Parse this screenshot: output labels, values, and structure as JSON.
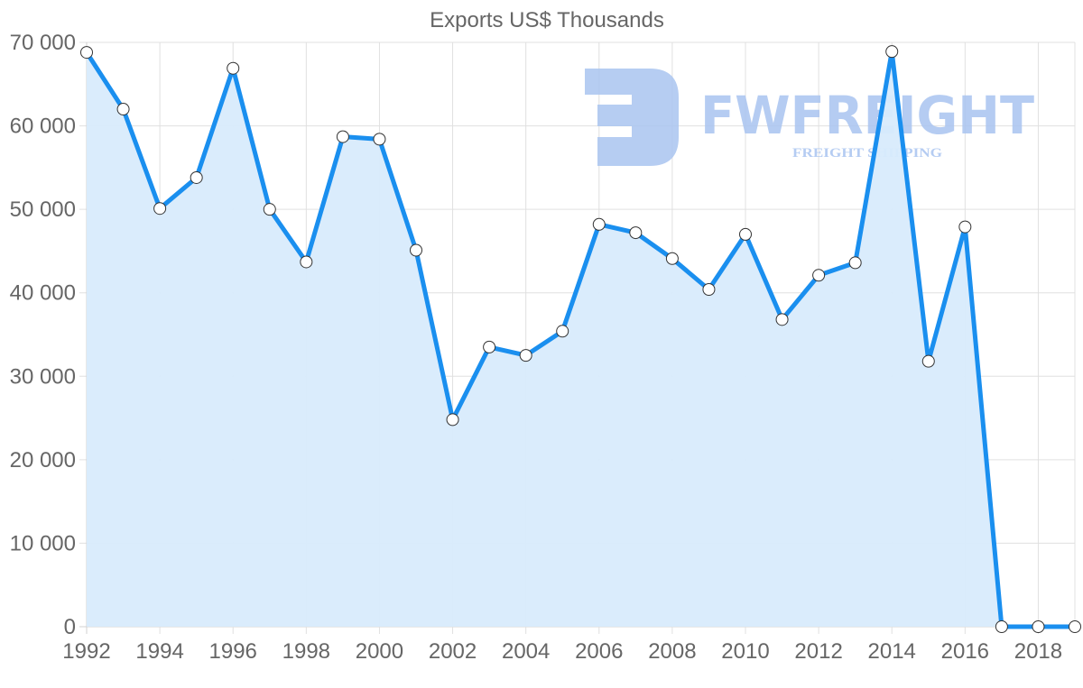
{
  "chart_data": {
    "type": "area",
    "title": "Exports US$ Thousands",
    "xlabel": "",
    "ylabel": "",
    "x": [
      1992,
      1993,
      1994,
      1995,
      1996,
      1997,
      1998,
      1999,
      2000,
      2001,
      2002,
      2003,
      2004,
      2005,
      2006,
      2007,
      2008,
      2009,
      2010,
      2011,
      2012,
      2013,
      2014,
      2015,
      2016,
      2017,
      2018,
      2019
    ],
    "series": [
      {
        "name": "Exports US$ Thousands",
        "values": [
          68800,
          62000,
          50100,
          53800,
          66900,
          50000,
          43700,
          58700,
          58400,
          45100,
          24800,
          33500,
          32500,
          35400,
          48200,
          47200,
          44100,
          40400,
          47000,
          36800,
          42100,
          43600,
          68900,
          31800,
          47900,
          0,
          0,
          0
        ]
      }
    ],
    "xticks": [
      "1992",
      "1994",
      "1996",
      "1998",
      "2000",
      "2002",
      "2004",
      "2006",
      "2008",
      "2010",
      "2012",
      "2014",
      "2016",
      "2018"
    ],
    "yticks": [
      "0",
      "10 000",
      "20 000",
      "30 000",
      "40 000",
      "50 000",
      "60 000",
      "70 000"
    ],
    "ylim": [
      0,
      70000
    ],
    "xlim": [
      1992,
      2019
    ],
    "grid": true,
    "legend": "none",
    "colors": {
      "line": "#1a8fef",
      "fill": "#d8ebfc",
      "point_fill": "#ffffff",
      "point_stroke": "#333333"
    }
  },
  "watermark": {
    "brand": "FWFREIGHT",
    "tagline": "FREIGHT SHIPPING",
    "color": "#a9c4f0"
  }
}
